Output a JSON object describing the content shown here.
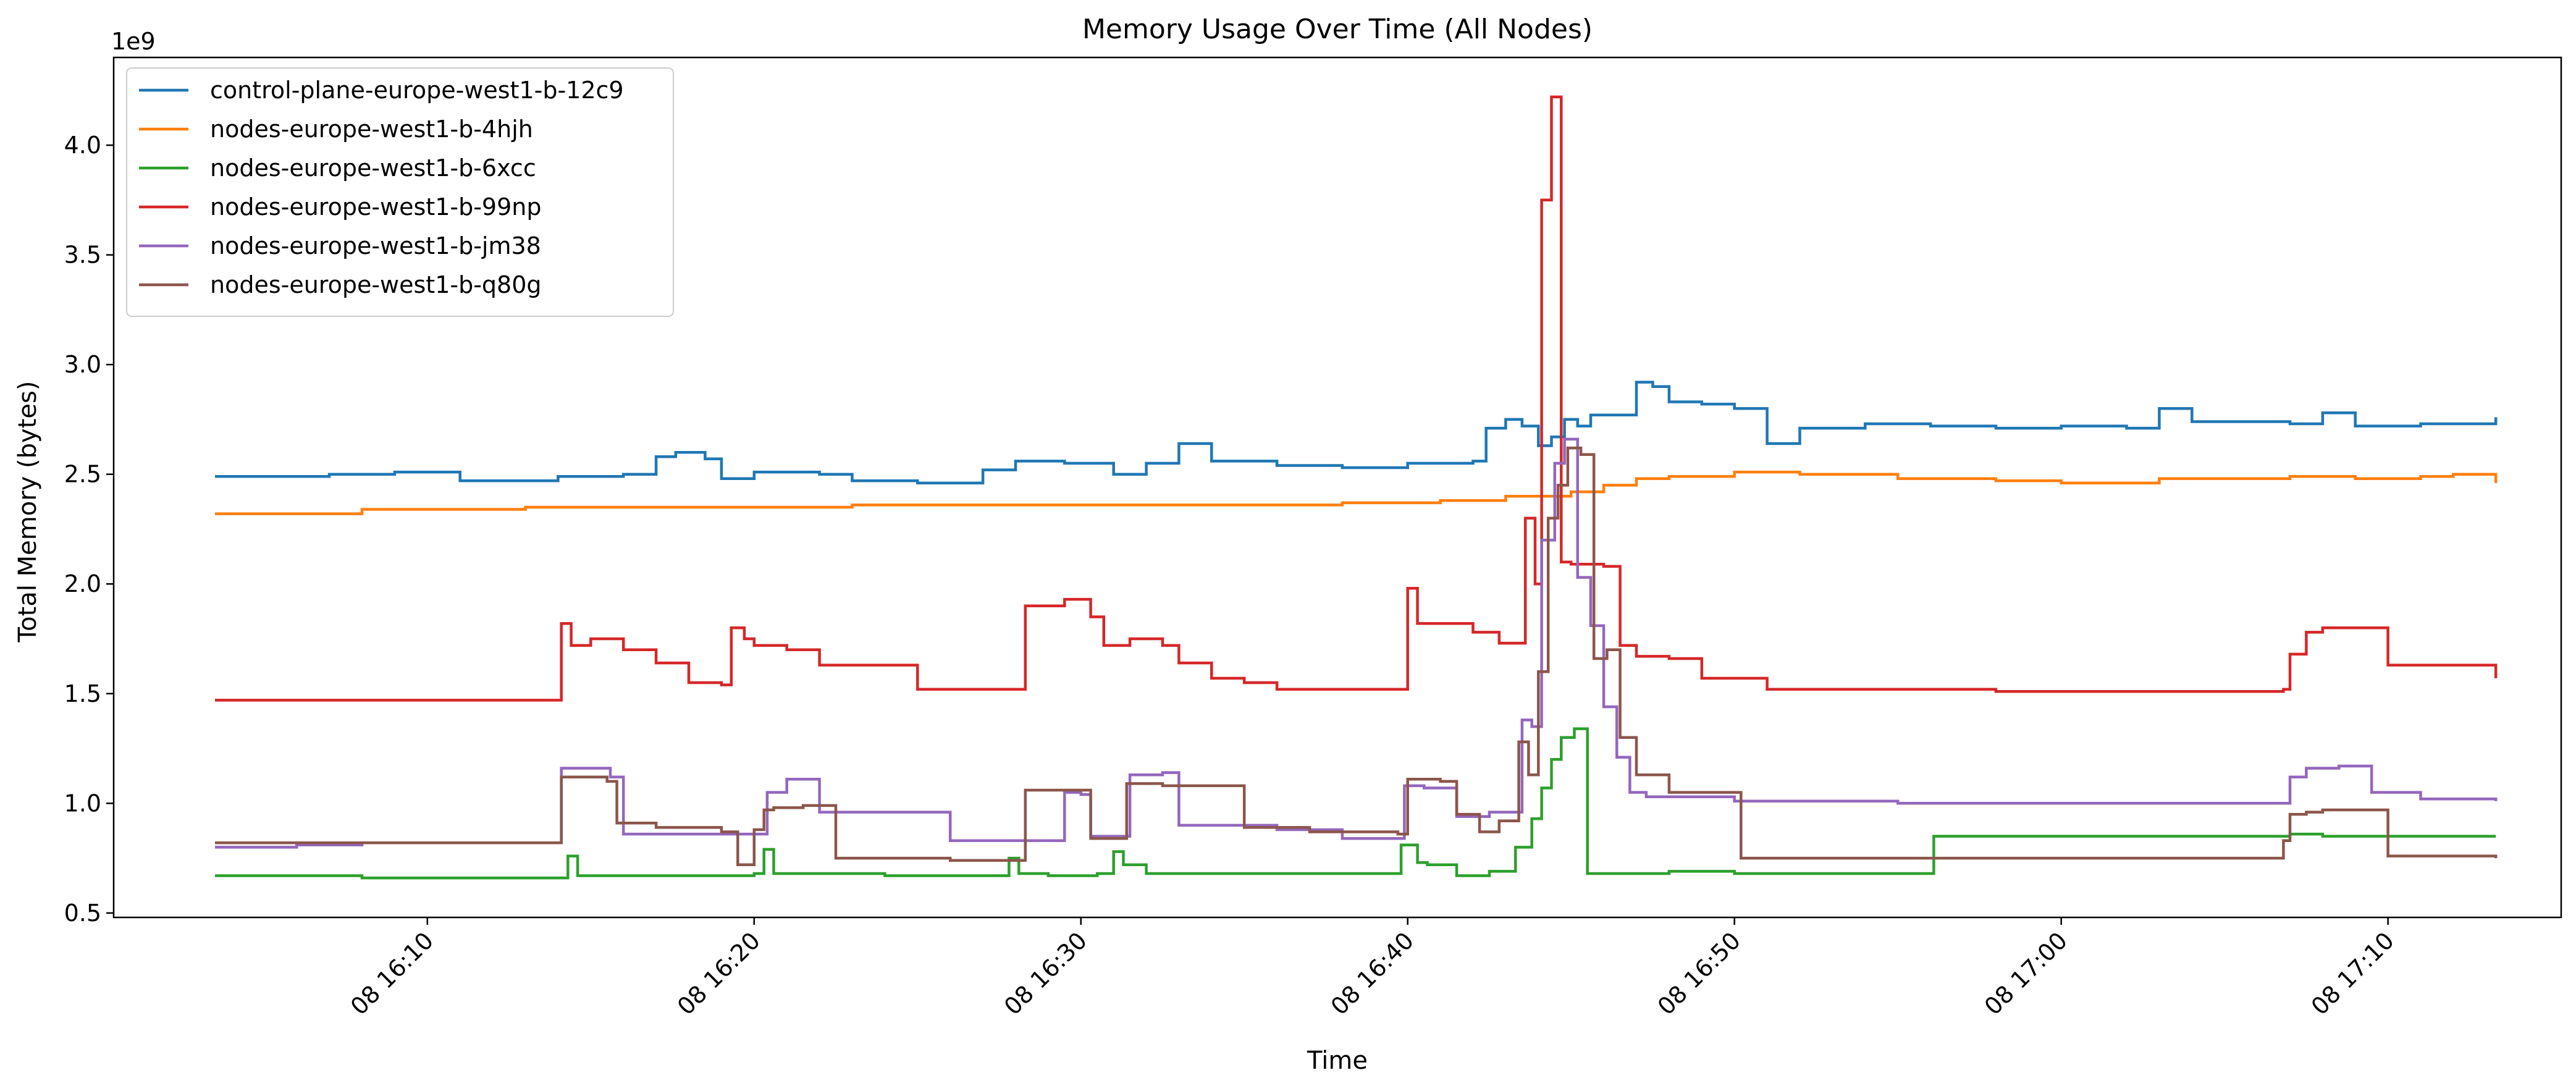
{
  "chart_data": {
    "type": "line",
    "title": "Memory Usage Over Time (All Nodes)",
    "xlabel": "Time",
    "ylabel": "Total Memory (bytes)",
    "y_scale_label": "1e9",
    "x_tick_labels": [
      "08 16:10",
      "08 16:20",
      "08 16:30",
      "08 16:40",
      "08 16:50",
      "08 17:00",
      "08 17:10"
    ],
    "x_tick_minutes": [
      10,
      20,
      30,
      40,
      50,
      60,
      70
    ],
    "xlim_minutes": [
      0.4,
      75.3
    ],
    "y_ticks": [
      0.5,
      1.0,
      1.5,
      2.0,
      2.5,
      3.0,
      3.5,
      4.0
    ],
    "y_tick_labels": [
      "0.5",
      "1.0",
      "1.5",
      "2.0",
      "2.5",
      "3.0",
      "3.5",
      "4.0"
    ],
    "ylim": [
      0.48,
      4.4
    ],
    "grid": false,
    "legend_position": "top-left",
    "x_unit_note": "x values are minutes after 16:00 on the 8th",
    "series": [
      {
        "name": "control-plane-europe-west1-b-12c9",
        "color": "#1f77b4",
        "x": [
          3.5,
          5,
          7,
          9,
          11,
          12,
          14,
          16,
          17,
          17.6,
          18.5,
          19,
          20,
          22,
          23,
          25,
          27,
          28,
          29.5,
          31,
          32,
          33,
          34,
          36,
          38,
          40,
          41.5,
          42,
          42.4,
          43,
          43.5,
          44,
          44.4,
          44.8,
          45.2,
          45.6,
          46,
          47,
          47.5,
          48,
          49,
          50,
          51,
          52,
          54,
          56,
          58,
          60,
          62,
          63,
          64,
          65,
          67,
          68,
          69,
          71,
          73.3
        ],
        "y": [
          2.49,
          2.49,
          2.5,
          2.51,
          2.47,
          2.47,
          2.49,
          2.5,
          2.58,
          2.6,
          2.57,
          2.48,
          2.51,
          2.5,
          2.47,
          2.46,
          2.52,
          2.56,
          2.55,
          2.5,
          2.55,
          2.64,
          2.56,
          2.54,
          2.53,
          2.55,
          2.55,
          2.56,
          2.71,
          2.75,
          2.72,
          2.63,
          2.67,
          2.75,
          2.72,
          2.77,
          2.77,
          2.92,
          2.9,
          2.83,
          2.82,
          2.8,
          2.64,
          2.71,
          2.73,
          2.72,
          2.71,
          2.72,
          2.71,
          2.8,
          2.74,
          2.74,
          2.73,
          2.78,
          2.72,
          2.73,
          2.76
        ]
      },
      {
        "name": "nodes-europe-west1-b-4hjh",
        "color": "#ff7f0e",
        "x": [
          3.5,
          8,
          13,
          18,
          23,
          28,
          33,
          38,
          41,
          43,
          45,
          46,
          47,
          48,
          50,
          52,
          55,
          57,
          58,
          60,
          62,
          63,
          67,
          69,
          71,
          72,
          73.3
        ],
        "y": [
          2.32,
          2.34,
          2.35,
          2.35,
          2.36,
          2.36,
          2.36,
          2.37,
          2.38,
          2.4,
          2.42,
          2.45,
          2.48,
          2.49,
          2.51,
          2.5,
          2.48,
          2.48,
          2.47,
          2.46,
          2.46,
          2.48,
          2.49,
          2.48,
          2.49,
          2.5,
          2.46
        ]
      },
      {
        "name": "nodes-europe-west1-b-6xcc",
        "color": "#2ca02c",
        "x": [
          3.5,
          8,
          12,
          14,
          14.3,
          14.6,
          17,
          19,
          20,
          20.3,
          20.6,
          24,
          27,
          27.8,
          28.1,
          29,
          30.5,
          31,
          31.3,
          32,
          34,
          37,
          39.5,
          39.8,
          40.3,
          40.6,
          41.5,
          42.5,
          43.3,
          43.8,
          44.1,
          44.4,
          44.7,
          45.1,
          45.5,
          46,
          48,
          50,
          52,
          54,
          56,
          56.1,
          57,
          60,
          63,
          66,
          67,
          68,
          70,
          73.3
        ],
        "y": [
          0.67,
          0.66,
          0.66,
          0.66,
          0.76,
          0.67,
          0.67,
          0.67,
          0.68,
          0.79,
          0.68,
          0.67,
          0.67,
          0.75,
          0.68,
          0.67,
          0.68,
          0.78,
          0.72,
          0.68,
          0.68,
          0.68,
          0.68,
          0.81,
          0.73,
          0.72,
          0.67,
          0.69,
          0.8,
          0.93,
          1.07,
          1.2,
          1.3,
          1.34,
          0.68,
          0.68,
          0.69,
          0.68,
          0.68,
          0.68,
          0.68,
          0.85,
          0.85,
          0.85,
          0.85,
          0.85,
          0.86,
          0.85,
          0.85,
          0.85
        ]
      },
      {
        "name": "nodes-europe-west1-b-99np",
        "color": "#d62728",
        "x": [
          3.5,
          10,
          13.9,
          14.1,
          14.4,
          15,
          16,
          17,
          18,
          19,
          19.3,
          19.7,
          20,
          21,
          22,
          24,
          25,
          27,
          28,
          28.3,
          29.5,
          30,
          30.3,
          30.7,
          31.5,
          32,
          32.5,
          33,
          34,
          35,
          36,
          38,
          39.8,
          40,
          40.3,
          42,
          42.8,
          43.3,
          43.6,
          43.9,
          44.1,
          44.4,
          44.7,
          45,
          45.2,
          45.5,
          46,
          46.5,
          47,
          48,
          49,
          50,
          51,
          54,
          58,
          62,
          66,
          66.8,
          67,
          67.5,
          68,
          69,
          70,
          71,
          73.3
        ],
        "y": [
          1.47,
          1.47,
          1.47,
          1.82,
          1.72,
          1.75,
          1.7,
          1.64,
          1.55,
          1.54,
          1.8,
          1.75,
          1.72,
          1.7,
          1.63,
          1.63,
          1.52,
          1.52,
          1.52,
          1.9,
          1.93,
          1.93,
          1.85,
          1.72,
          1.75,
          1.75,
          1.72,
          1.64,
          1.57,
          1.55,
          1.52,
          1.52,
          1.52,
          1.98,
          1.82,
          1.78,
          1.73,
          1.73,
          2.3,
          2.0,
          3.75,
          4.22,
          2.1,
          2.09,
          2.09,
          2.09,
          2.08,
          1.72,
          1.67,
          1.66,
          1.57,
          1.57,
          1.52,
          1.52,
          1.51,
          1.51,
          1.51,
          1.52,
          1.68,
          1.78,
          1.8,
          1.8,
          1.63,
          1.63,
          1.57
        ]
      },
      {
        "name": "nodes-europe-west1-b-jm38",
        "color": "#9467bd",
        "x": [
          3.5,
          6,
          8,
          10,
          13.9,
          14.1,
          15.6,
          16,
          19,
          20,
          20.4,
          21,
          22,
          24,
          26,
          28,
          29.5,
          30,
          30.3,
          30.8,
          31.5,
          32.5,
          33,
          36,
          38,
          39.6,
          39.9,
          40.5,
          41.5,
          42.5,
          43.5,
          43.8,
          44.1,
          44.5,
          44.8,
          45.2,
          45.6,
          46,
          46.4,
          46.8,
          47.3,
          48.5,
          50,
          55,
          60,
          65,
          66.8,
          67,
          67.5,
          68.5,
          69.5,
          71,
          73.3
        ],
        "y": [
          0.8,
          0.81,
          0.82,
          0.82,
          0.82,
          1.16,
          1.12,
          0.86,
          0.86,
          0.86,
          1.05,
          1.11,
          0.96,
          0.96,
          0.83,
          0.83,
          1.05,
          1.04,
          0.85,
          0.85,
          1.13,
          1.14,
          0.9,
          0.88,
          0.84,
          0.84,
          1.08,
          1.07,
          0.94,
          0.96,
          1.38,
          1.35,
          2.2,
          2.55,
          2.66,
          2.03,
          1.81,
          1.44,
          1.21,
          1.05,
          1.03,
          1.03,
          1.01,
          1.0,
          1.0,
          1.0,
          1.0,
          1.12,
          1.16,
          1.17,
          1.05,
          1.02,
          1.01
        ]
      },
      {
        "name": "nodes-europe-west1-b-q80g",
        "color": "#8c564b",
        "x": [
          3.5,
          8,
          13.9,
          14.1,
          15.5,
          15.8,
          17,
          19,
          19.5,
          20,
          20.3,
          20.6,
          21.5,
          22.5,
          24,
          26,
          28,
          28.3,
          30,
          30.3,
          31,
          31.4,
          32.5,
          35,
          37,
          39.7,
          40,
          41,
          41.5,
          42.2,
          42.8,
          43.4,
          43.7,
          44.0,
          44.3,
          44.6,
          44.9,
          45.3,
          45.7,
          46.1,
          46.5,
          47,
          48,
          50,
          50.2,
          55,
          60,
          66,
          66.8,
          67,
          67.5,
          68,
          69,
          70,
          73.3
        ],
        "y": [
          0.82,
          0.82,
          0.82,
          1.12,
          1.1,
          0.91,
          0.89,
          0.87,
          0.72,
          0.88,
          0.97,
          0.98,
          0.99,
          0.75,
          0.75,
          0.74,
          0.74,
          1.06,
          1.06,
          0.84,
          0.84,
          1.09,
          1.08,
          0.89,
          0.87,
          0.86,
          1.11,
          1.1,
          0.95,
          0.87,
          0.92,
          1.28,
          1.13,
          1.6,
          2.3,
          2.45,
          2.62,
          2.59,
          1.66,
          1.7,
          1.3,
          1.13,
          1.05,
          1.05,
          0.75,
          0.75,
          0.75,
          0.75,
          0.83,
          0.95,
          0.96,
          0.97,
          0.97,
          0.76,
          0.75
        ]
      }
    ]
  }
}
